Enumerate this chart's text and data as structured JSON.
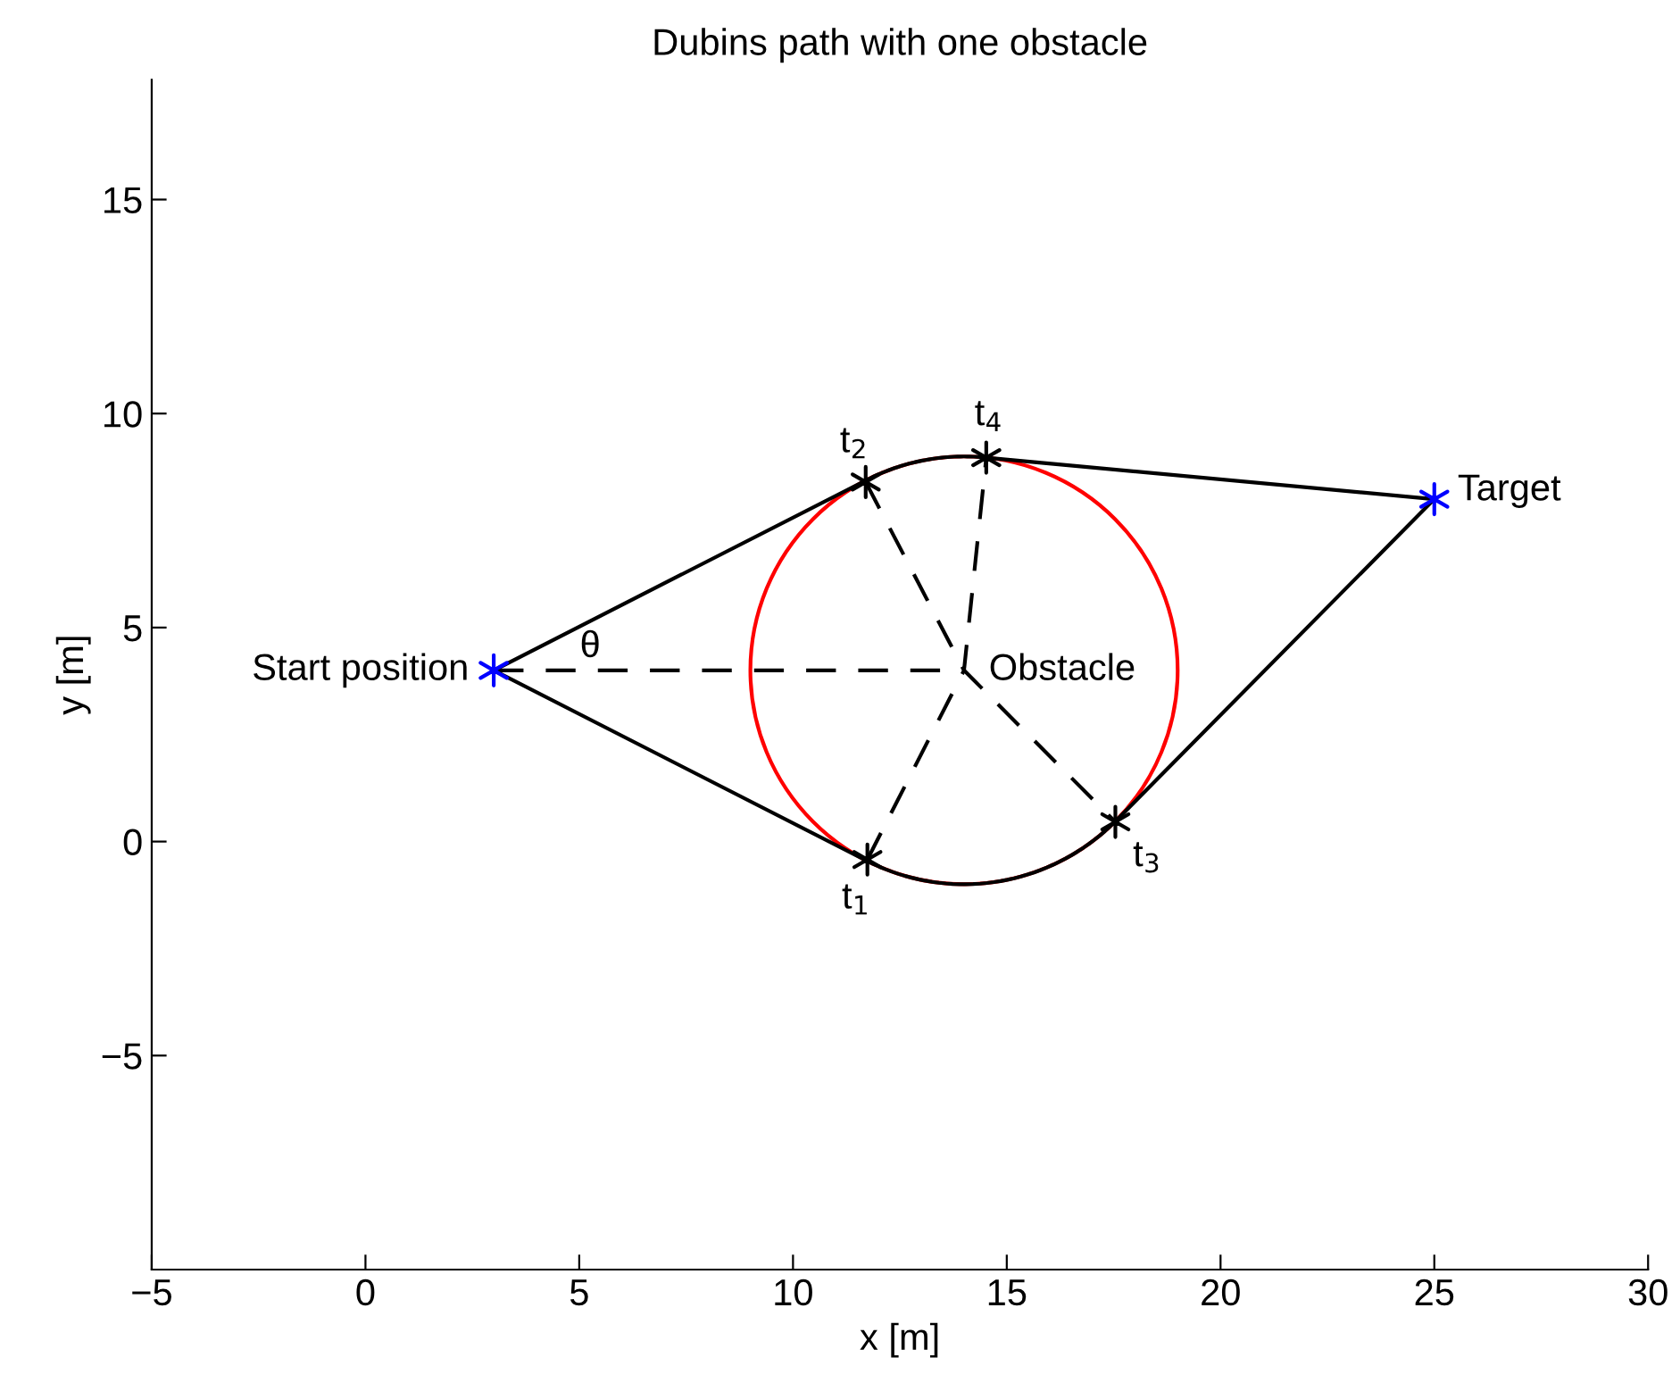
{
  "chart_data": {
    "type": "line",
    "title": "Dubins path with one obstacle",
    "xlabel": "x [m]",
    "ylabel": "y [m]",
    "xlim": [
      -5,
      30
    ],
    "ylim": [
      -10,
      17.8
    ],
    "xticks": [
      {
        "value": -5,
        "label": "−5"
      },
      0,
      5,
      10,
      15,
      20,
      25,
      30
    ],
    "yticks": [
      {
        "value": -5,
        "label": "−5"
      },
      0,
      5,
      10,
      15
    ],
    "grid": false,
    "legend": false,
    "series": [
      {
        "color": "#000000",
        "line_style": "dashed",
        "x": [
          3,
          14
        ],
        "values": [
          4,
          4
        ]
      },
      {
        "color": "#000000",
        "line_style": "dashed",
        "x": [
          11.74,
          14,
          14.52
        ],
        "values": [
          -0.42,
          4,
          8.97
        ]
      },
      {
        "color": "#000000",
        "line_style": "dashed",
        "x": [
          11.7,
          14,
          17.54
        ],
        "values": [
          8.4,
          4,
          0.46
        ]
      },
      {
        "type": "scatter",
        "color": "#0000ff",
        "marker": "cross",
        "x": [
          3,
          25
        ],
        "values": [
          4,
          8
        ]
      },
      {
        "type": "scatter",
        "color": "#000000",
        "marker": "cross",
        "x": [
          11.74,
          11.7,
          17.54,
          14.52
        ],
        "values": [
          -0.42,
          8.4,
          0.46,
          8.97
        ]
      }
    ],
    "annotations": [
      {
        "text": "Start position",
        "x": 3,
        "y": 4
      },
      {
        "text": "Target",
        "x": 25,
        "y": 8
      },
      {
        "text": "Obstacle",
        "x": 14,
        "y": 4
      },
      "θ",
      {
        "text": "t$_{1}$",
        "x": 11.74,
        "y": -0.42
      },
      {
        "text": "t$_{2}$",
        "x": 11.7,
        "y": 8.4
      },
      {
        "text": "t$_{3}$",
        "x": 17.54,
        "y": 0.46
      },
      {
        "text": "t$_{4}$",
        "x": 14.52,
        "y": 8.97
      }
    ]
  }
}
